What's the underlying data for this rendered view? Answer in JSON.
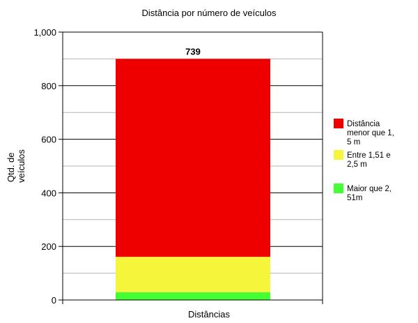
{
  "chart_data": {
    "type": "bar",
    "stacked": true,
    "title": "Distância por número de veículos",
    "xlabel": "Distâncias",
    "ylabel_lines": [
      "Qtd. de",
      "veículos"
    ],
    "categories": [
      ""
    ],
    "series": [
      {
        "name_lines": [
          "Maior que 2,",
          "51m"
        ],
        "values": [
          29
        ],
        "label": "29",
        "color": "#44ff33"
      },
      {
        "name_lines": [
          "Entre 1,51 e",
          "2,5 m"
        ],
        "values": [
          132
        ],
        "label": "132",
        "color": "#f5f53c"
      },
      {
        "name_lines": [
          "Distância",
          "menor que 1,",
          "5 m"
        ],
        "values": [
          739
        ],
        "label": "739",
        "color": "#ee0000"
      }
    ],
    "legend_order": [
      2,
      1,
      0
    ],
    "ylim": [
      0,
      1000
    ],
    "yticks": [
      0,
      200,
      400,
      600,
      800,
      1000
    ],
    "ytick_labels": [
      "0",
      "200",
      "400",
      "600",
      "800",
      "1,000"
    ],
    "minor_gridlines": [
      100,
      300,
      500,
      700,
      900
    ],
    "grid": true,
    "legend_position": "right"
  }
}
